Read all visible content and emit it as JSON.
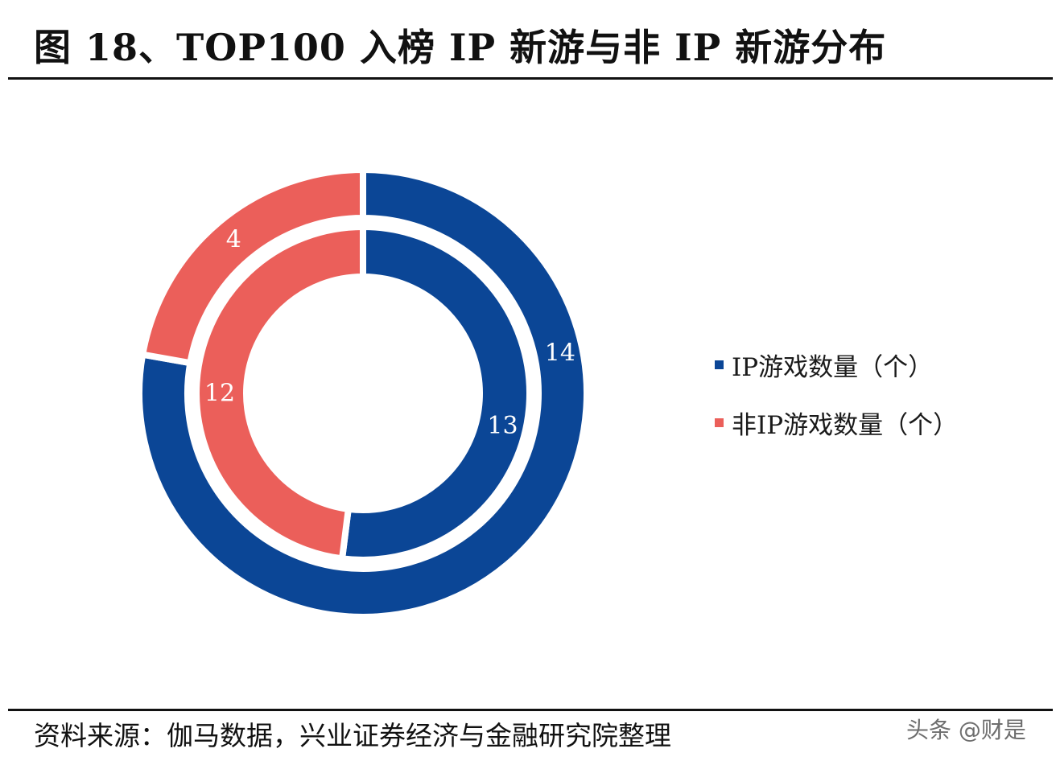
{
  "header": {
    "title": "图 18、TOP100 入榜 IP 新游与非 IP 新游分布"
  },
  "legend": {
    "items": [
      {
        "label": "IP游戏数量（个）",
        "color": "#0B4696"
      },
      {
        "label": "非IP游戏数量（个）",
        "color": "#EB5F5A"
      }
    ]
  },
  "footer": {
    "source": "资料来源：伽马数据，兴业证券经济与金融研究院整理",
    "watermark": "头条 @财是"
  },
  "chart_data": {
    "type": "pie",
    "subtype": "double-donut",
    "title": "TOP100 入榜 IP 新游与非 IP 新游分布",
    "categories": [
      "IP游戏数量（个）",
      "非IP游戏数量（个）"
    ],
    "colors": [
      "#0B4696",
      "#EB5F5A"
    ],
    "series": [
      {
        "name": "outer-ring",
        "values": [
          14,
          4
        ]
      },
      {
        "name": "inner-ring",
        "values": [
          13,
          12
        ]
      }
    ],
    "data_labels": true,
    "legend_position": "right",
    "start_angle_deg": 0,
    "direction": "clockwise"
  }
}
